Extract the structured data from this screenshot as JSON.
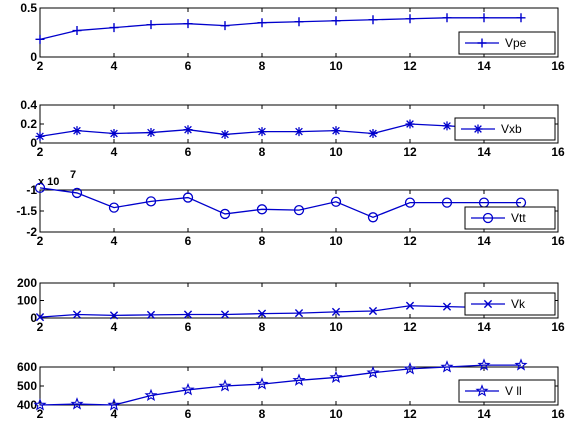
{
  "chart_data": [
    {
      "type": "line",
      "x": [
        2,
        3,
        4,
        5,
        6,
        7,
        8,
        9,
        10,
        11,
        12,
        13,
        14,
        15
      ],
      "series": [
        {
          "name": "Vpe",
          "values": [
            0.18,
            0.27,
            0.3,
            0.33,
            0.34,
            0.32,
            0.35,
            0.36,
            0.37,
            0.38,
            0.39,
            0.4,
            0.4,
            0.4
          ]
        }
      ],
      "xlim": [
        2,
        16
      ],
      "ylim": [
        0,
        0.5
      ],
      "xticks": [
        "2",
        "4",
        "6",
        "8",
        "10",
        "12",
        "14",
        "16"
      ],
      "yticks": [
        "0",
        "0.5"
      ],
      "y_tick_values": [
        0,
        0.5
      ],
      "marker": "plus",
      "color": "#0000cc",
      "legend": "bottom-right",
      "grid": false
    },
    {
      "type": "line",
      "x": [
        2,
        3,
        4,
        5,
        6,
        7,
        8,
        9,
        10,
        11,
        12,
        13,
        14,
        15
      ],
      "series": [
        {
          "name": "Vxb",
          "values": [
            0.07,
            0.13,
            0.1,
            0.11,
            0.14,
            0.09,
            0.12,
            0.12,
            0.13,
            0.1,
            0.2,
            0.18,
            0.16,
            0.16
          ]
        }
      ],
      "xlim": [
        2,
        16
      ],
      "ylim": [
        0,
        0.4
      ],
      "xticks": [
        "2",
        "4",
        "6",
        "8",
        "10",
        "12",
        "14",
        "16"
      ],
      "yticks": [
        "0",
        "0.2",
        "0.4"
      ],
      "y_tick_values": [
        0,
        0.2,
        0.4
      ],
      "marker": "star",
      "color": "#0000cc",
      "legend": "bottom-right",
      "grid": false
    },
    {
      "type": "line",
      "x": [
        2,
        3,
        4,
        5,
        6,
        7,
        8,
        9,
        10,
        11,
        12,
        13,
        14,
        15
      ],
      "series": [
        {
          "name": "Vtt",
          "values": [
            -0.95,
            -1.07,
            -1.42,
            -1.27,
            -1.18,
            -1.57,
            -1.46,
            -1.48,
            -1.28,
            -1.65,
            -1.3,
            -1.3,
            -1.3,
            -1.3
          ]
        }
      ],
      "xlim": [
        2,
        16
      ],
      "ylim": [
        -2,
        -1
      ],
      "xticks": [
        "2",
        "4",
        "6",
        "8",
        "10",
        "12",
        "14",
        "16"
      ],
      "yticks": [
        "-1",
        "-1.5",
        "-2"
      ],
      "y_tick_values": [
        -1,
        -1.5,
        -2
      ],
      "exponent_label": "x 10",
      "exponent_power": "7",
      "marker": "circle",
      "color": "#0000cc",
      "legend": "bottom-right",
      "grid": false
    },
    {
      "type": "line",
      "x": [
        2,
        3,
        4,
        5,
        6,
        7,
        8,
        9,
        10,
        11,
        12,
        13,
        14,
        15
      ],
      "series": [
        {
          "name": "Vk",
          "values": [
            5,
            20,
            15,
            18,
            20,
            20,
            25,
            28,
            35,
            40,
            70,
            65,
            60,
            60
          ]
        }
      ],
      "xlim": [
        2,
        16
      ],
      "ylim": [
        0,
        200
      ],
      "xticks": [
        "2",
        "4",
        "6",
        "8",
        "10",
        "12",
        "14",
        "16"
      ],
      "yticks": [
        "0",
        "100",
        "200"
      ],
      "y_tick_values": [
        0,
        100,
        200
      ],
      "marker": "x",
      "color": "#0000cc",
      "legend": "bottom-right",
      "grid": false
    },
    {
      "type": "line",
      "x": [
        2,
        3,
        4,
        5,
        6,
        7,
        8,
        9,
        10,
        11,
        12,
        13,
        14,
        15
      ],
      "series": [
        {
          "name": "V ll",
          "values": [
            400,
            405,
            400,
            450,
            480,
            500,
            510,
            530,
            545,
            570,
            590,
            600,
            610,
            610
          ]
        }
      ],
      "xlim": [
        2,
        16
      ],
      "ylim": [
        400,
        600
      ],
      "xticks": [
        "2",
        "4",
        "6",
        "8",
        "10",
        "12",
        "14",
        "16"
      ],
      "yticks": [
        "400",
        "500",
        "600"
      ],
      "y_tick_values": [
        400,
        500,
        600
      ],
      "marker": "pentagram",
      "color": "#0000cc",
      "legend": "bottom-right",
      "grid": false
    }
  ]
}
